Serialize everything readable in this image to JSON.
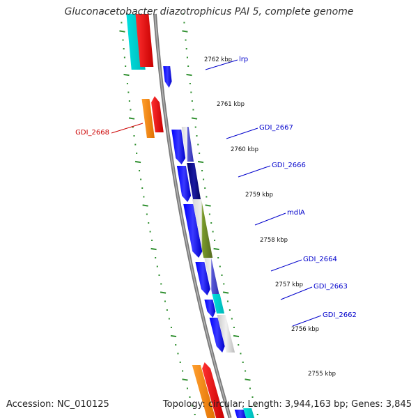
{
  "title": "Gluconacetobacter diazotrophicus PAI 5, complete genome",
  "footer": {
    "accession": "Accession: NC_010125",
    "topology": "Topology: circular; Length: 3,944,163 bp; Genes: 3,845"
  },
  "colors": {
    "backbone": "#8c8c8c",
    "ticks": "#2f8f2f",
    "feature_forward": "#0000ee",
    "feature_navy": "#000080",
    "feature_cyan": "#00d8d8",
    "feature_red": "#ee0000",
    "feature_orange": "#ff8c00",
    "feature_olive": "#6b8e23",
    "label_blue": "#0000cc",
    "label_red": "#cc0000"
  },
  "kbp_labels": [
    "2762 kbp",
    "2761 kbp",
    "2760 kbp",
    "2759 kbp",
    "2758 kbp",
    "2757 kbp",
    "2756 kbp",
    "2755 kbp"
  ],
  "gene_labels": [
    {
      "name": "lrp",
      "color": "blue"
    },
    {
      "name": "GDI_2667",
      "color": "blue"
    },
    {
      "name": "GDI_2666",
      "color": "blue"
    },
    {
      "name": "mdlA",
      "color": "blue"
    },
    {
      "name": "GDI_2664",
      "color": "blue"
    },
    {
      "name": "GDI_2663",
      "color": "blue"
    },
    {
      "name": "GDI_2662",
      "color": "blue"
    },
    {
      "name": "GDI_2668",
      "color": "red"
    }
  ]
}
